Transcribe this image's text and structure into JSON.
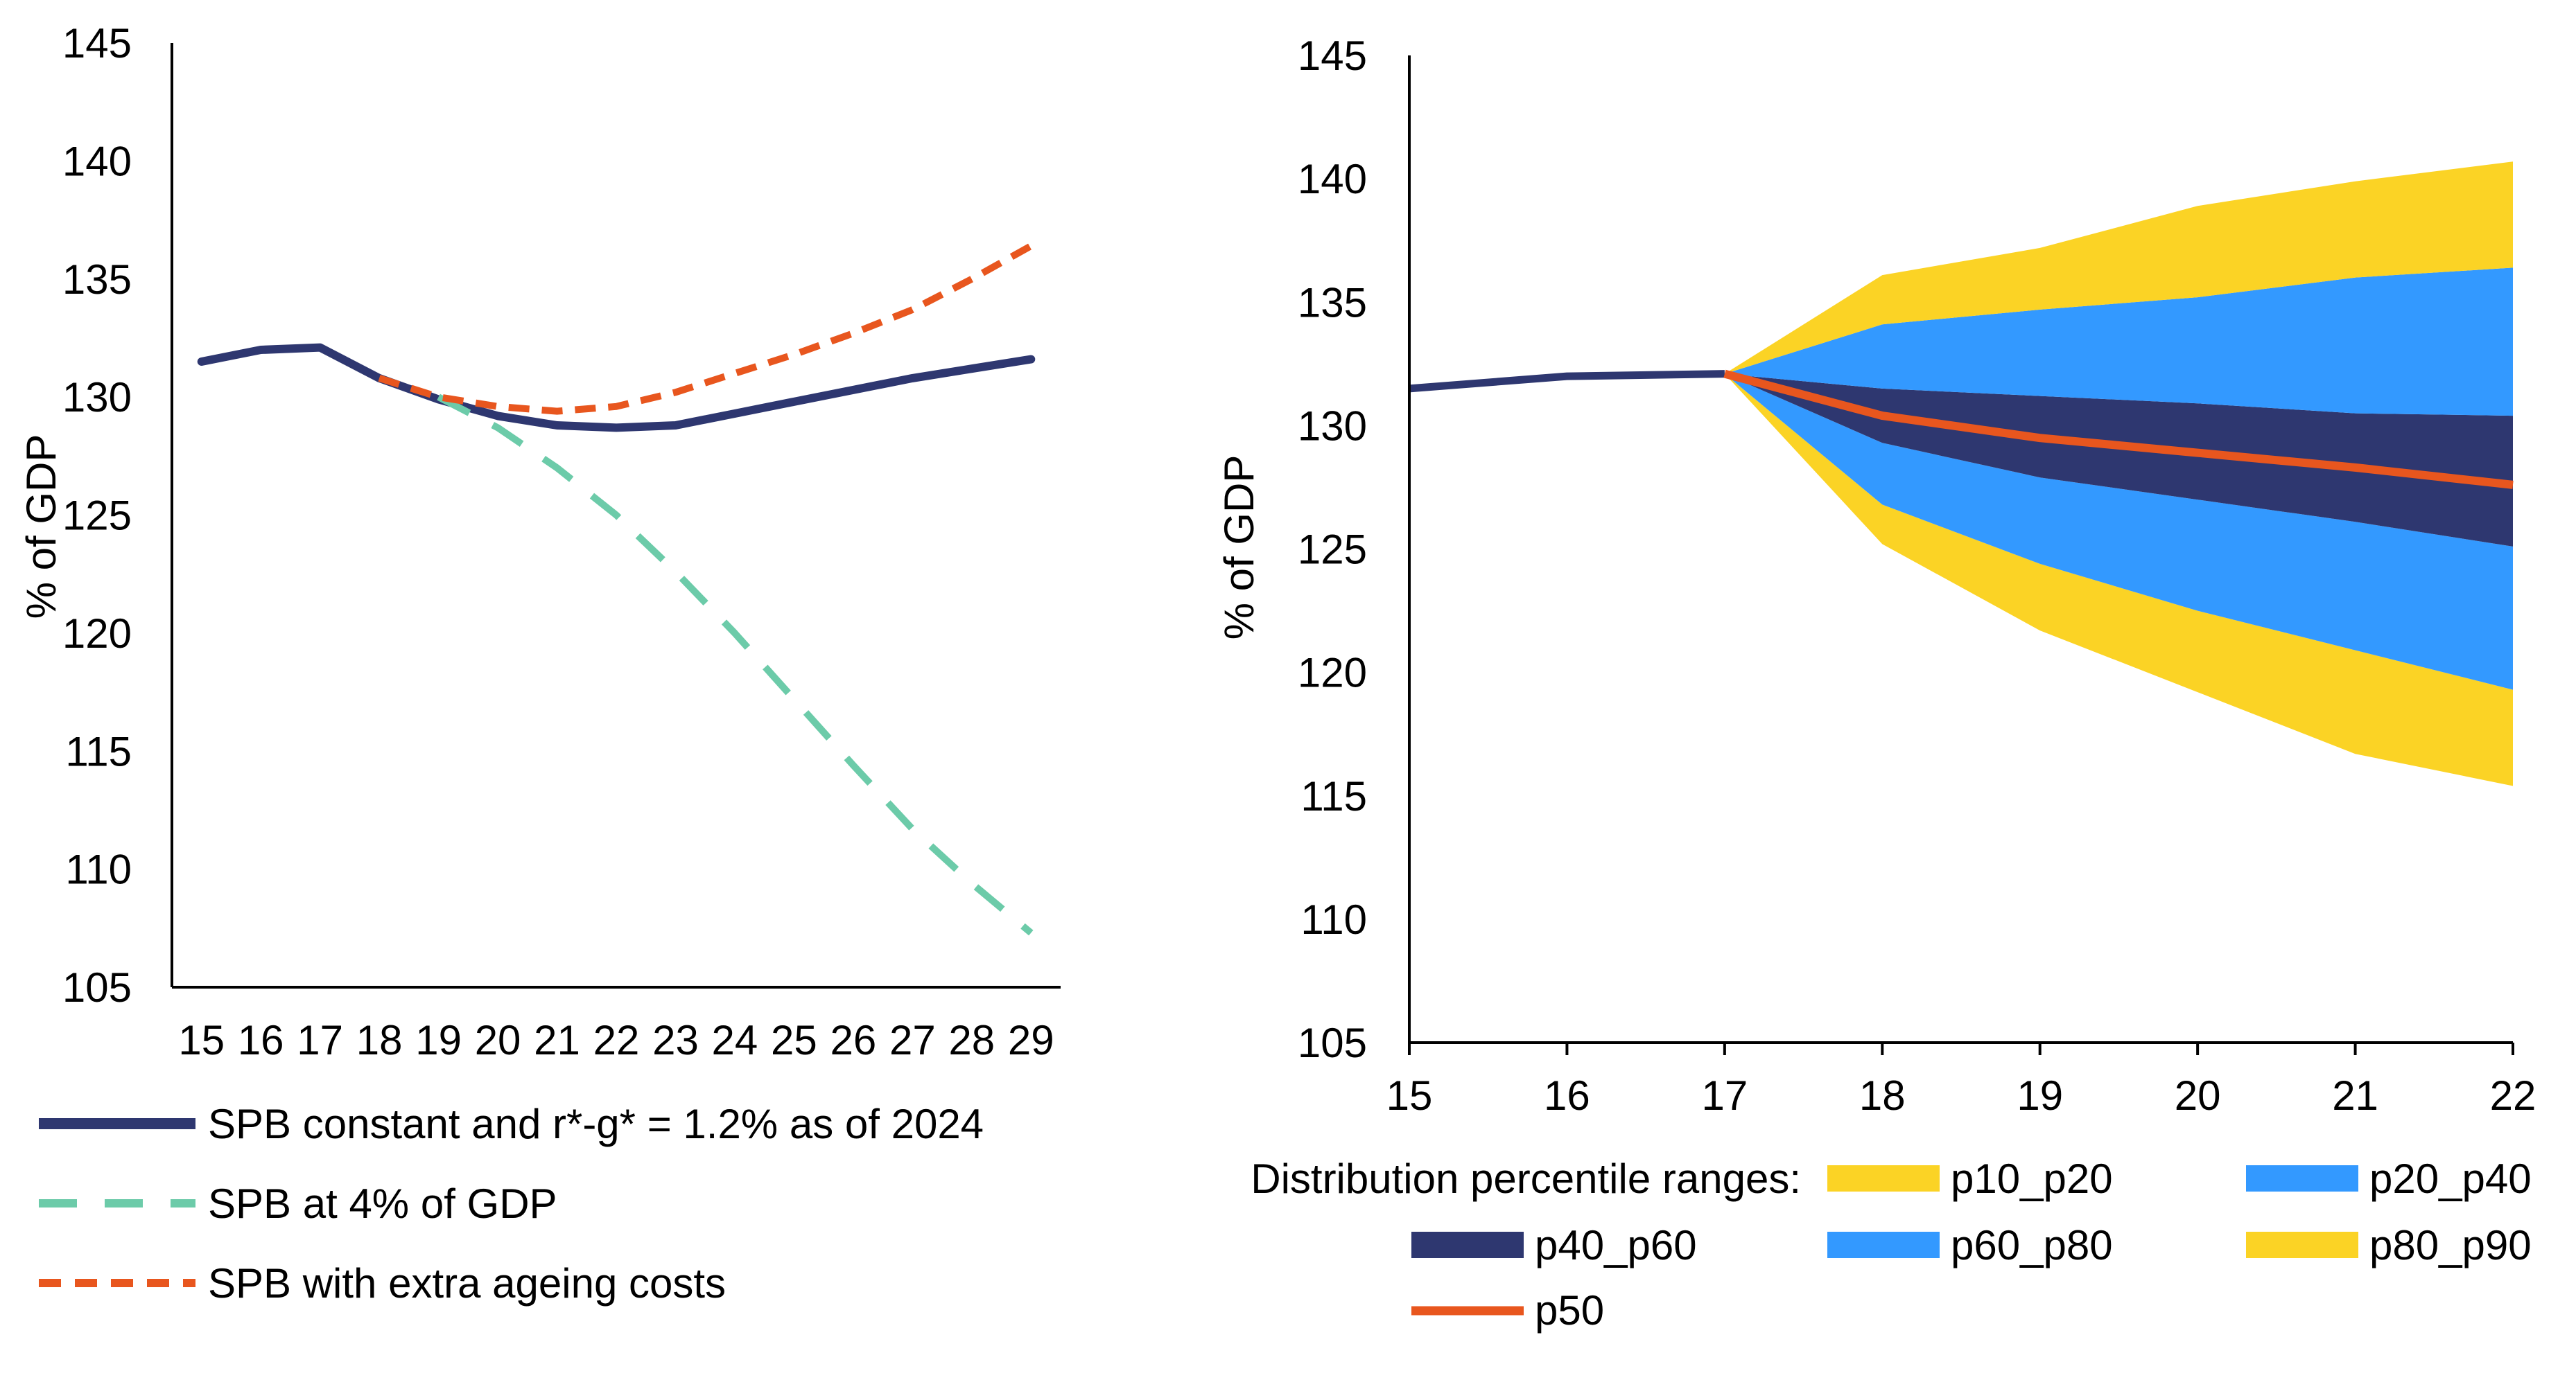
{
  "colors": {
    "navy": "#2E3770",
    "teal": "#6CCBA9",
    "orange": "#E8561E",
    "yellow": "#FBD325",
    "blue": "#3399FF",
    "axis": "#000000"
  },
  "chart_data": [
    {
      "type": "line",
      "title": "",
      "xlabel": "",
      "ylabel": "% of GDP",
      "ylim": [
        105,
        145
      ],
      "yticks": [
        "105",
        "110",
        "115",
        "120",
        "125",
        "130",
        "135",
        "140",
        "145"
      ],
      "categories": [
        "15",
        "16",
        "17",
        "18",
        "19",
        "20",
        "21",
        "22",
        "23",
        "24",
        "25",
        "26",
        "27",
        "28",
        "29"
      ],
      "grid": false,
      "legend_position": "bottom",
      "series": [
        {
          "name": "SPB constant and  r*-g* = 1.2% as of 2024",
          "style": "solid",
          "color": "navy",
          "x": [
            "15",
            "16",
            "17",
            "18",
            "19",
            "20",
            "21",
            "22",
            "23",
            "24",
            "25",
            "26",
            "27",
            "28",
            "29"
          ],
          "values": [
            131.5,
            132.0,
            132.1,
            130.8,
            129.9,
            129.2,
            128.8,
            128.7,
            128.8,
            129.3,
            129.8,
            130.3,
            130.8,
            131.2,
            131.6
          ]
        },
        {
          "name": "SPB at 4% of GDP",
          "style": "dashed",
          "color": "teal",
          "x": [
            "19",
            "20",
            "21",
            "22",
            "23",
            "24",
            "25",
            "26",
            "27",
            "28",
            "29"
          ],
          "values": [
            130.0,
            128.7,
            127.0,
            125.0,
            122.6,
            120.0,
            117.2,
            114.4,
            111.7,
            109.4,
            107.3
          ]
        },
        {
          "name": "SPB with extra ageing costs",
          "style": "dashed",
          "color": "orange",
          "x": [
            "18",
            "19",
            "20",
            "21",
            "22",
            "23",
            "24",
            "25",
            "26",
            "27",
            "28",
            "29"
          ],
          "values": [
            130.8,
            130.0,
            129.6,
            129.4,
            129.6,
            130.2,
            131.0,
            131.8,
            132.7,
            133.7,
            135.0,
            136.4
          ]
        }
      ]
    },
    {
      "type": "area",
      "title": "",
      "xlabel": "",
      "ylabel": "% of GDP",
      "ylim": [
        105,
        145
      ],
      "yticks": [
        "105",
        "110",
        "115",
        "120",
        "125",
        "130",
        "135",
        "140",
        "145"
      ],
      "categories": [
        "15",
        "16",
        "17",
        "18",
        "19",
        "20",
        "21",
        "22"
      ],
      "grid": false,
      "legend_position": "bottom",
      "legend_title": "Distribution percentile ranges:",
      "history": {
        "x": [
          "15",
          "16",
          "17"
        ],
        "values": [
          131.5,
          132.0,
          132.1
        ],
        "color": "navy"
      },
      "fan_x": [
        "17",
        "18",
        "19",
        "20",
        "21",
        "22"
      ],
      "percentiles": {
        "p10": [
          132.1,
          125.2,
          121.7,
          119.2,
          116.7,
          115.4
        ],
        "p20": [
          132.1,
          126.8,
          124.4,
          122.5,
          120.9,
          119.3
        ],
        "p40": [
          132.1,
          129.3,
          127.9,
          127.0,
          126.1,
          125.1
        ],
        "p50": [
          132.1,
          130.4,
          129.5,
          128.9,
          128.3,
          127.6
        ],
        "p60": [
          132.1,
          131.5,
          131.2,
          130.9,
          130.5,
          130.4
        ],
        "p80": [
          132.1,
          134.1,
          134.7,
          135.2,
          136.0,
          136.4
        ],
        "p90": [
          132.1,
          136.1,
          137.2,
          138.9,
          139.9,
          140.7
        ]
      },
      "series": [
        {
          "name": "p10_p20",
          "color": "yellow",
          "lower": "p10",
          "upper": "p20"
        },
        {
          "name": "p20_p40",
          "color": "blue",
          "lower": "p20",
          "upper": "p40"
        },
        {
          "name": "p40_p60",
          "color": "navy",
          "lower": "p40",
          "upper": "p60"
        },
        {
          "name": "p60_p80",
          "color": "blue",
          "lower": "p60",
          "upper": "p80"
        },
        {
          "name": "p80_p90",
          "color": "yellow",
          "lower": "p80",
          "upper": "p90"
        },
        {
          "name": "p50",
          "color": "orange",
          "line": "p50"
        }
      ]
    }
  ]
}
